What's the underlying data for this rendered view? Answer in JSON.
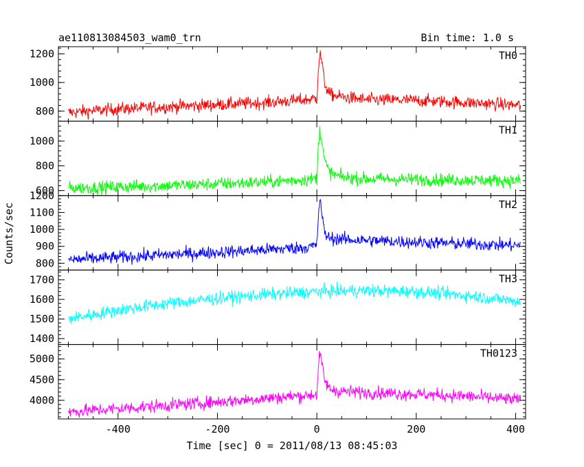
{
  "chart_data": [
    {
      "type": "line",
      "panel": "TH0",
      "title": "ae110813084503_wam0_trn",
      "bin_time_label": "Bin time: 1.0 s",
      "panel_label": "TH0",
      "color": "#ff0000",
      "xlim": [
        -520,
        420
      ],
      "ylim": [
        730,
        1250
      ],
      "yticks": [
        800,
        1000,
        1200
      ],
      "x": [
        -500,
        -400,
        -300,
        -200,
        -100,
        -20,
        0,
        3,
        6,
        10,
        15,
        25,
        40,
        60,
        100,
        200,
        300,
        410
      ],
      "values": [
        790,
        815,
        830,
        845,
        860,
        880,
        890,
        1100,
        1200,
        1150,
        1000,
        920,
        905,
        895,
        880,
        875,
        860,
        840
      ]
    },
    {
      "type": "line",
      "panel": "TH1",
      "panel_label": "TH1",
      "color": "#00ff00",
      "xlim": [
        -520,
        420
      ],
      "ylim": [
        560,
        1160
      ],
      "yticks": [
        600,
        800,
        1000
      ],
      "x": [
        -500,
        -400,
        -300,
        -200,
        -100,
        -20,
        0,
        3,
        6,
        10,
        15,
        25,
        40,
        60,
        100,
        200,
        300,
        410
      ],
      "values": [
        620,
        630,
        640,
        655,
        670,
        690,
        700,
        950,
        1120,
        1000,
        850,
        750,
        720,
        705,
        695,
        690,
        685,
        680
      ]
    },
    {
      "type": "line",
      "panel": "TH2",
      "panel_label": "TH2",
      "color": "#0000ff",
      "xlim": [
        -520,
        420
      ],
      "ylim": [
        760,
        1200
      ],
      "yticks": [
        800,
        900,
        1000,
        1100,
        1200
      ],
      "x": [
        -500,
        -400,
        -300,
        -200,
        -100,
        -20,
        0,
        3,
        6,
        10,
        15,
        25,
        40,
        60,
        100,
        200,
        300,
        410
      ],
      "values": [
        820,
        835,
        850,
        865,
        880,
        895,
        905,
        1080,
        1180,
        1100,
        980,
        950,
        945,
        940,
        935,
        925,
        915,
        905
      ]
    },
    {
      "type": "line",
      "panel": "TH3",
      "panel_label": "TH3",
      "color": "#00ffff",
      "xlim": [
        -520,
        420
      ],
      "ylim": [
        1370,
        1750
      ],
      "yticks": [
        1400,
        1500,
        1600,
        1700
      ],
      "x": [
        -500,
        -400,
        -300,
        -200,
        -100,
        0,
        100,
        200,
        300,
        410
      ],
      "values": [
        1500,
        1545,
        1580,
        1605,
        1625,
        1640,
        1645,
        1640,
        1620,
        1590
      ]
    },
    {
      "type": "line",
      "panel": "TH0123",
      "panel_label": "TH0123",
      "color": "#ff00ff",
      "xlim": [
        -520,
        420
      ],
      "ylim": [
        3550,
        5350
      ],
      "yticks": [
        4000,
        4500,
        5000
      ],
      "x": [
        -500,
        -400,
        -300,
        -200,
        -100,
        -20,
        0,
        3,
        6,
        10,
        15,
        25,
        40,
        60,
        100,
        200,
        300,
        410
      ],
      "values": [
        3720,
        3800,
        3880,
        3960,
        4050,
        4120,
        4150,
        4750,
        5150,
        4900,
        4500,
        4280,
        4230,
        4210,
        4190,
        4150,
        4100,
        4010
      ]
    }
  ],
  "xaxis": {
    "xlim": [
      -520,
      420
    ],
    "ticks": [
      -400,
      -200,
      0,
      200,
      400
    ],
    "label": "Time [sec] 0 = 2011/08/13 08:45:03"
  },
  "ylabel": "Counts/sec"
}
